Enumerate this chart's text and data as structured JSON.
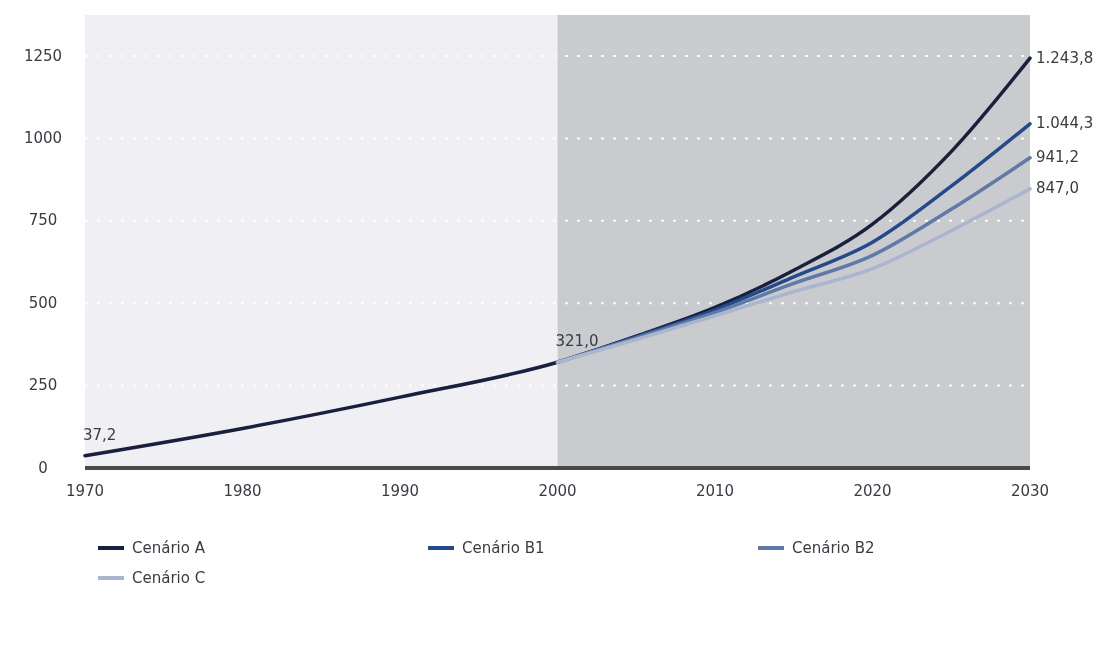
{
  "chart_data": {
    "type": "line",
    "xlim": [
      1970,
      2030
    ],
    "xticks": [
      1970,
      1980,
      1990,
      2000,
      2010,
      2020,
      2030
    ],
    "ylim": [
      0,
      1250
    ],
    "yticks": [
      0,
      250,
      500,
      750,
      1000,
      1250
    ],
    "grid": "y",
    "legend": "bottom",
    "line_style": "solid",
    "bands": [
      {
        "axis": "x",
        "from": 1970,
        "to": 2000,
        "color": "#f0f0f4"
      },
      {
        "axis": "x",
        "from": 2000,
        "to": 2030,
        "color": "#c9cbce"
      }
    ],
    "series": [
      {
        "name": "Cenário A",
        "color": "#1a1f3d",
        "x": [
          1970,
          1980,
          1990,
          2000,
          2005,
          2010,
          2015,
          2020,
          2025,
          2030
        ],
        "values": [
          37.2,
          120,
          215,
          321,
          400,
          487,
          600,
          740,
          960,
          1243.8
        ]
      },
      {
        "name": "Cenário B1",
        "color": "#234a8a",
        "x": [
          2000,
          2005,
          2010,
          2015,
          2020,
          2025,
          2030
        ],
        "values": [
          321,
          398,
          480,
          580,
          685,
          855,
          1044.3
        ]
      },
      {
        "name": "Cenário B2",
        "color": "#5f7aa6",
        "x": [
          2000,
          2005,
          2010,
          2015,
          2020,
          2025,
          2030
        ],
        "values": [
          321,
          395,
          472,
          560,
          645,
          785,
          941.2
        ]
      },
      {
        "name": "Cenário C",
        "color": "#aab5d0",
        "x": [
          2000,
          2005,
          2010,
          2015,
          2020,
          2025,
          2030
        ],
        "values": [
          321,
          390,
          462,
          535,
          605,
          720,
          847.0
        ]
      }
    ],
    "annotations": [
      {
        "text": "37,2",
        "x": 1970,
        "y": 37.2
      },
      {
        "text": "321,0",
        "x": 2000,
        "y": 321
      },
      {
        "text": "1.243,8",
        "x": 2030,
        "y": 1243.8
      },
      {
        "text": "1.044,3",
        "x": 2030,
        "y": 1044.3
      },
      {
        "text": "941,2",
        "x": 2030,
        "y": 941.2
      },
      {
        "text": "847,0",
        "x": 2030,
        "y": 847.0
      }
    ]
  }
}
